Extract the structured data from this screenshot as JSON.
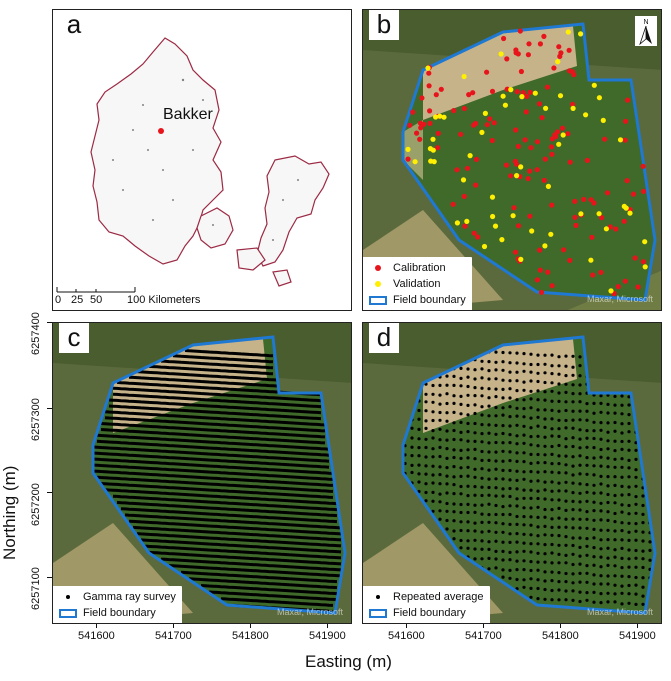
{
  "panels": {
    "a": {
      "letter": "a",
      "place": "Bakker",
      "scale_labels": [
        "0",
        "25",
        "50",
        "100 Kilometers"
      ]
    },
    "b": {
      "letter": "b",
      "north": "N",
      "credit": "Maxar, Microsoft",
      "legend": [
        "Calibration",
        "Validation",
        "Field boundary"
      ]
    },
    "c": {
      "letter": "c",
      "credit": "Maxar, Microsoft",
      "legend": [
        "Gamma ray survey",
        "Field boundary"
      ]
    },
    "d": {
      "letter": "d",
      "credit": "Maxar, Microsoft",
      "legend": [
        "Repeated average",
        "Field boundary"
      ]
    }
  },
  "axes": {
    "y_title": "Northing (m)",
    "x_title": "Easting (m)",
    "y_ticks": [
      "6257400",
      "6257300",
      "6257200",
      "6257100"
    ],
    "x_ticks": [
      "541600",
      "541700",
      "541800",
      "541900"
    ]
  },
  "colors": {
    "calibration": "#e8141c",
    "validation": "#ffef00",
    "boundary": "#1f78d1",
    "coast": "#9c2a44",
    "survey": "#000000"
  }
}
